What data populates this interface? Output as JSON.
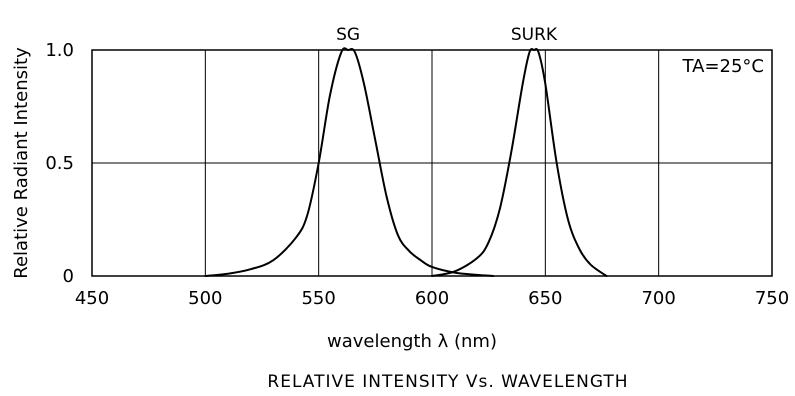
{
  "chart_data": {
    "type": "line",
    "title": "RELATIVE INTENSITY Vs. WAVELENGTH",
    "xlabel": "wavelength λ (nm)",
    "ylabel": "Relative Radiant Intensity",
    "xlim": [
      450,
      750
    ],
    "ylim": [
      0,
      1.0
    ],
    "xticks": [
      450,
      500,
      550,
      600,
      650,
      700,
      750
    ],
    "xtick_labels": [
      "450",
      "500",
      "550",
      "600",
      "650",
      "700",
      "750"
    ],
    "yticks": [
      0,
      0.5,
      1.0
    ],
    "ytick_labels": [
      "0",
      "0.5",
      "1.0"
    ],
    "grid": true,
    "annotation": "TA=25°C",
    "series": [
      {
        "name": "SG",
        "x": [
          500,
          510,
          520,
          530,
          540,
          545,
          550,
          555,
          560,
          563,
          566,
          570,
          575,
          580,
          585,
          590,
          595,
          600,
          610,
          620,
          627
        ],
        "y": [
          0.0,
          0.01,
          0.03,
          0.07,
          0.17,
          0.27,
          0.5,
          0.8,
          0.99,
          1.0,
          0.99,
          0.85,
          0.6,
          0.35,
          0.18,
          0.11,
          0.07,
          0.04,
          0.015,
          0.005,
          0.0
        ]
      },
      {
        "name": "SURK",
        "x": [
          600,
          610,
          620,
          625,
          630,
          635,
          640,
          643,
          645,
          647,
          650,
          655,
          660,
          665,
          670,
          677
        ],
        "y": [
          0.0,
          0.02,
          0.08,
          0.15,
          0.3,
          0.55,
          0.85,
          0.99,
          1.0,
          0.99,
          0.85,
          0.5,
          0.25,
          0.12,
          0.05,
          0.0
        ]
      }
    ]
  }
}
